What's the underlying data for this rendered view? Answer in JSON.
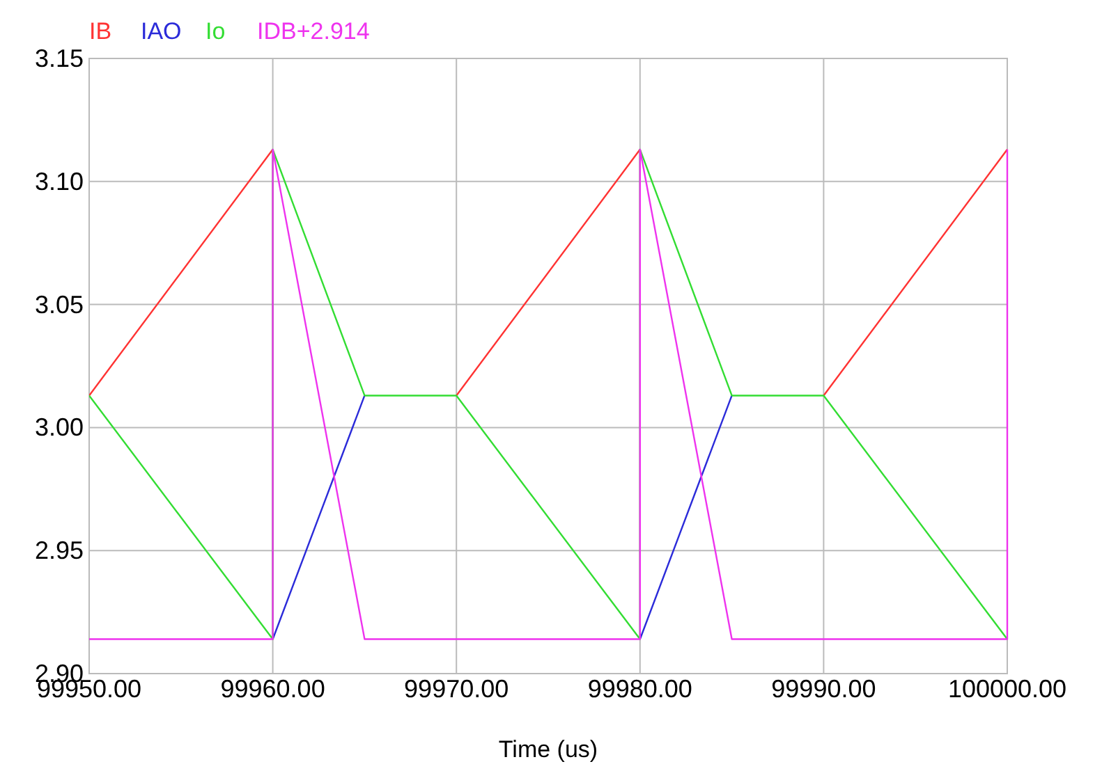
{
  "chart_data": {
    "type": "line",
    "xlabel": "Time (us)",
    "legend": "top left",
    "grid": true,
    "line_style": "solid",
    "marker": "none",
    "xlim": [
      99950,
      100000
    ],
    "ylim": [
      2.9,
      3.15
    ],
    "xticks": [
      {
        "value": 99950,
        "label": "99950.00"
      },
      {
        "value": 99960,
        "label": "99960.00"
      },
      {
        "value": 99970,
        "label": "99970.00"
      },
      {
        "value": 99980,
        "label": "99980.00"
      },
      {
        "value": 99990,
        "label": "99990.00"
      },
      {
        "value": 100000,
        "label": "100000.00"
      }
    ],
    "yticks": [
      {
        "value": 2.9,
        "label": "2.90"
      },
      {
        "value": 2.95,
        "label": "2.95"
      },
      {
        "value": 3.0,
        "label": "3.00"
      },
      {
        "value": 3.05,
        "label": "3.05"
      },
      {
        "value": 3.1,
        "label": "3.10"
      },
      {
        "value": 3.15,
        "label": "3.15"
      }
    ],
    "series": [
      {
        "name": "IB",
        "color": "#ff3333",
        "x": [
          99950,
          99960,
          99965,
          99970,
          99980,
          99985,
          99990,
          100000
        ],
        "values": [
          3.013,
          3.113,
          null,
          3.013,
          3.113,
          null,
          3.013,
          3.113
        ]
      },
      {
        "name": "IAO",
        "color": "#2b2bd9",
        "x": [
          99960,
          99965,
          99972,
          99980,
          99985
        ],
        "values": [
          2.914,
          3.013,
          null,
          2.914,
          3.013
        ]
      },
      {
        "name": "Io",
        "color": "#33dd33",
        "x": [
          99950,
          99960,
          99960,
          99965,
          99970,
          99980,
          99980,
          99985,
          99990,
          100000
        ],
        "values": [
          3.013,
          2.914,
          3.113,
          3.013,
          3.013,
          2.914,
          3.113,
          3.013,
          3.013,
          2.914
        ]
      },
      {
        "name": "IDB+2.914",
        "color": "#ee33ee",
        "x": [
          99950,
          99960,
          99960,
          99965,
          99980,
          99980,
          99985,
          100000,
          100000
        ],
        "values": [
          2.914,
          2.914,
          3.113,
          2.914,
          2.914,
          3.113,
          2.914,
          2.914,
          3.113
        ]
      }
    ]
  }
}
